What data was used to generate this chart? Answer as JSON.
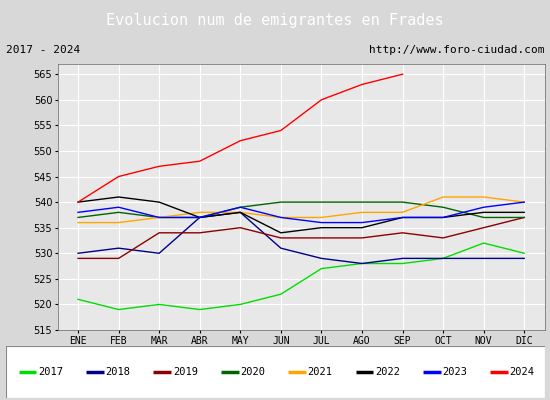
{
  "title": "Evolucion num de emigrantes en Frades",
  "subtitle_left": "2017 - 2024",
  "subtitle_right": "http://www.foro-ciudad.com",
  "x_labels": [
    "ENE",
    "FEB",
    "MAR",
    "ABR",
    "MAY",
    "JUN",
    "JUL",
    "AGO",
    "SEP",
    "OCT",
    "NOV",
    "DIC"
  ],
  "ylim": [
    515,
    567
  ],
  "yticks": [
    515,
    520,
    525,
    530,
    535,
    540,
    545,
    550,
    555,
    560,
    565
  ],
  "series": {
    "2017": {
      "color": "#00dd00",
      "data": [
        521,
        519,
        520,
        519,
        520,
        522,
        527,
        528,
        528,
        529,
        532,
        530
      ]
    },
    "2018": {
      "color": "#00008b",
      "data": [
        530,
        531,
        530,
        537,
        538,
        531,
        529,
        528,
        529,
        529,
        529,
        529
      ]
    },
    "2019": {
      "color": "#8b0000",
      "data": [
        529,
        529,
        534,
        534,
        535,
        533,
        533,
        533,
        534,
        533,
        535,
        537
      ]
    },
    "2020": {
      "color": "#006400",
      "data": [
        537,
        538,
        537,
        537,
        539,
        540,
        540,
        540,
        540,
        539,
        537,
        537
      ]
    },
    "2021": {
      "color": "#ffa500",
      "data": [
        536,
        536,
        537,
        538,
        538,
        537,
        537,
        538,
        538,
        541,
        541,
        540
      ]
    },
    "2022": {
      "color": "#000000",
      "data": [
        540,
        541,
        540,
        537,
        538,
        534,
        535,
        535,
        537,
        537,
        538,
        538
      ]
    },
    "2023": {
      "color": "#0000ff",
      "data": [
        538,
        539,
        537,
        537,
        539,
        537,
        536,
        536,
        537,
        537,
        539,
        540
      ]
    },
    "2024": {
      "color": "#ff0000",
      "data": [
        540,
        545,
        547,
        548,
        552,
        554,
        560,
        563,
        565,
        null,
        null,
        null
      ]
    }
  },
  "background_color": "#d8d8d8",
  "plot_bg_color": "#e8e8e8",
  "title_bg_color": "#5b9bd5",
  "title_text_color": "#ffffff",
  "subtitle_bg_color": "#d0d0d0",
  "grid_color": "#ffffff",
  "legend_bg_color": "#ffffff"
}
